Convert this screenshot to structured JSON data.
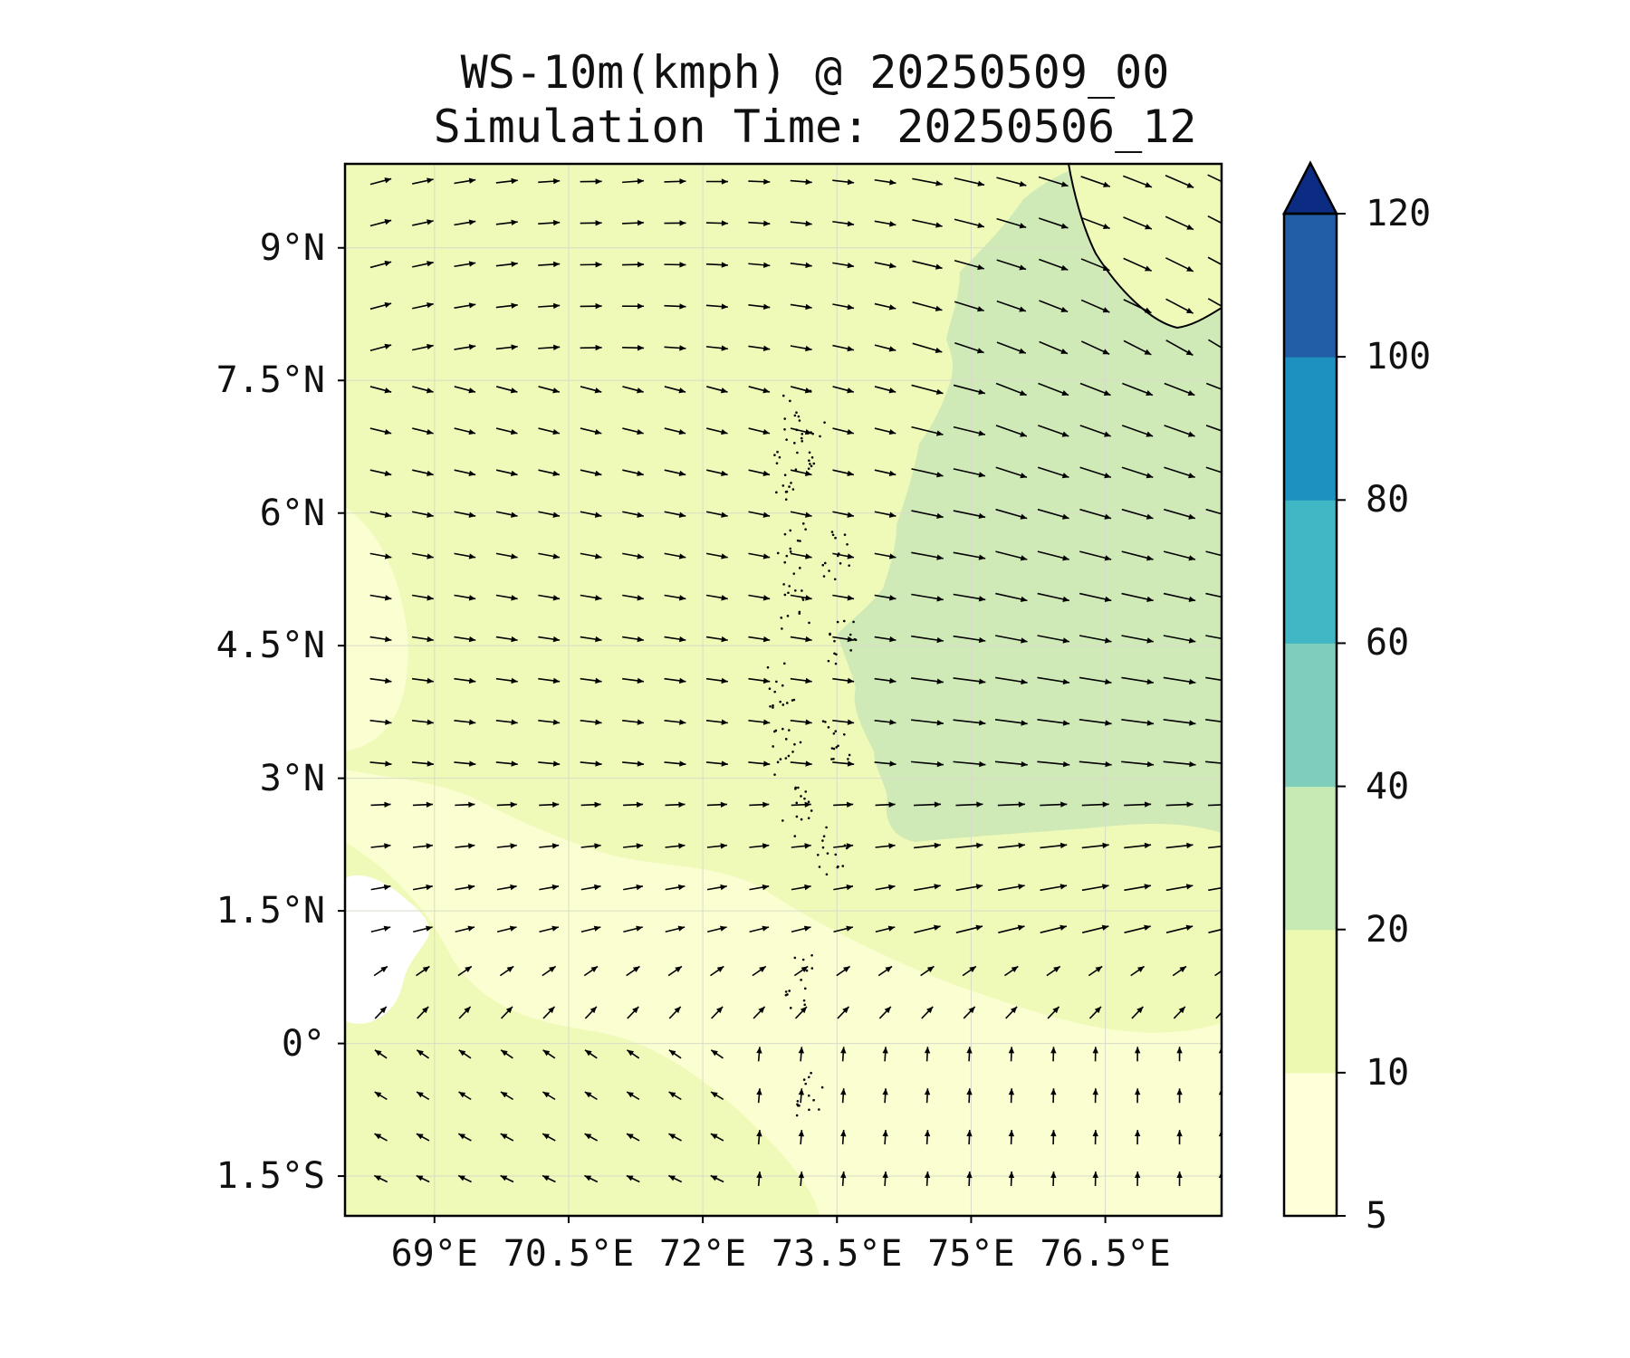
{
  "title": "WS-10m(kmph) @ 20250509_00",
  "subtitle": "Simulation Time: 20250506_12",
  "lat_ticks": [
    {
      "label": "9°N",
      "lat": 9.0
    },
    {
      "label": "7.5°N",
      "lat": 7.5
    },
    {
      "label": "6°N",
      "lat": 6.0
    },
    {
      "label": "4.5°N",
      "lat": 4.5
    },
    {
      "label": "3°N",
      "lat": 3.0
    },
    {
      "label": "1.5°N",
      "lat": 1.5
    },
    {
      "label": "0°",
      "lat": 0.0
    },
    {
      "label": "1.5°S",
      "lat": -1.5
    }
  ],
  "lon_ticks": [
    {
      "label": "69°E",
      "lon": 69.0
    },
    {
      "label": "70.5°E",
      "lon": 70.5
    },
    {
      "label": "72°E",
      "lon": 72.0
    },
    {
      "label": "73.5°E",
      "lon": 73.5
    },
    {
      "label": "75°E",
      "lon": 75.0
    },
    {
      "label": "76.5°E",
      "lon": 76.5
    }
  ],
  "extent": {
    "lon_min": 68.0,
    "lon_max": 77.8,
    "lat_min": -1.95,
    "lat_max": 9.95
  },
  "colorbar": {
    "levels": [
      5,
      10,
      20,
      40,
      60,
      80,
      100,
      120
    ],
    "labels": [
      "5",
      "10",
      "20",
      "40",
      "60",
      "80",
      "100",
      "120"
    ],
    "colors": [
      "#ffffd9",
      "#edf8b1",
      "#c7e9b4",
      "#7fcdbb",
      "#41b6c4",
      "#1d91c0",
      "#225ea8"
    ],
    "extend_color": "#0c2c84",
    "extend": "max"
  },
  "field_colors": {
    "below_min": "#ffffff",
    "light": "#fbfed0",
    "mid": "#eff9b8",
    "strong": "#cfeab7"
  }
}
